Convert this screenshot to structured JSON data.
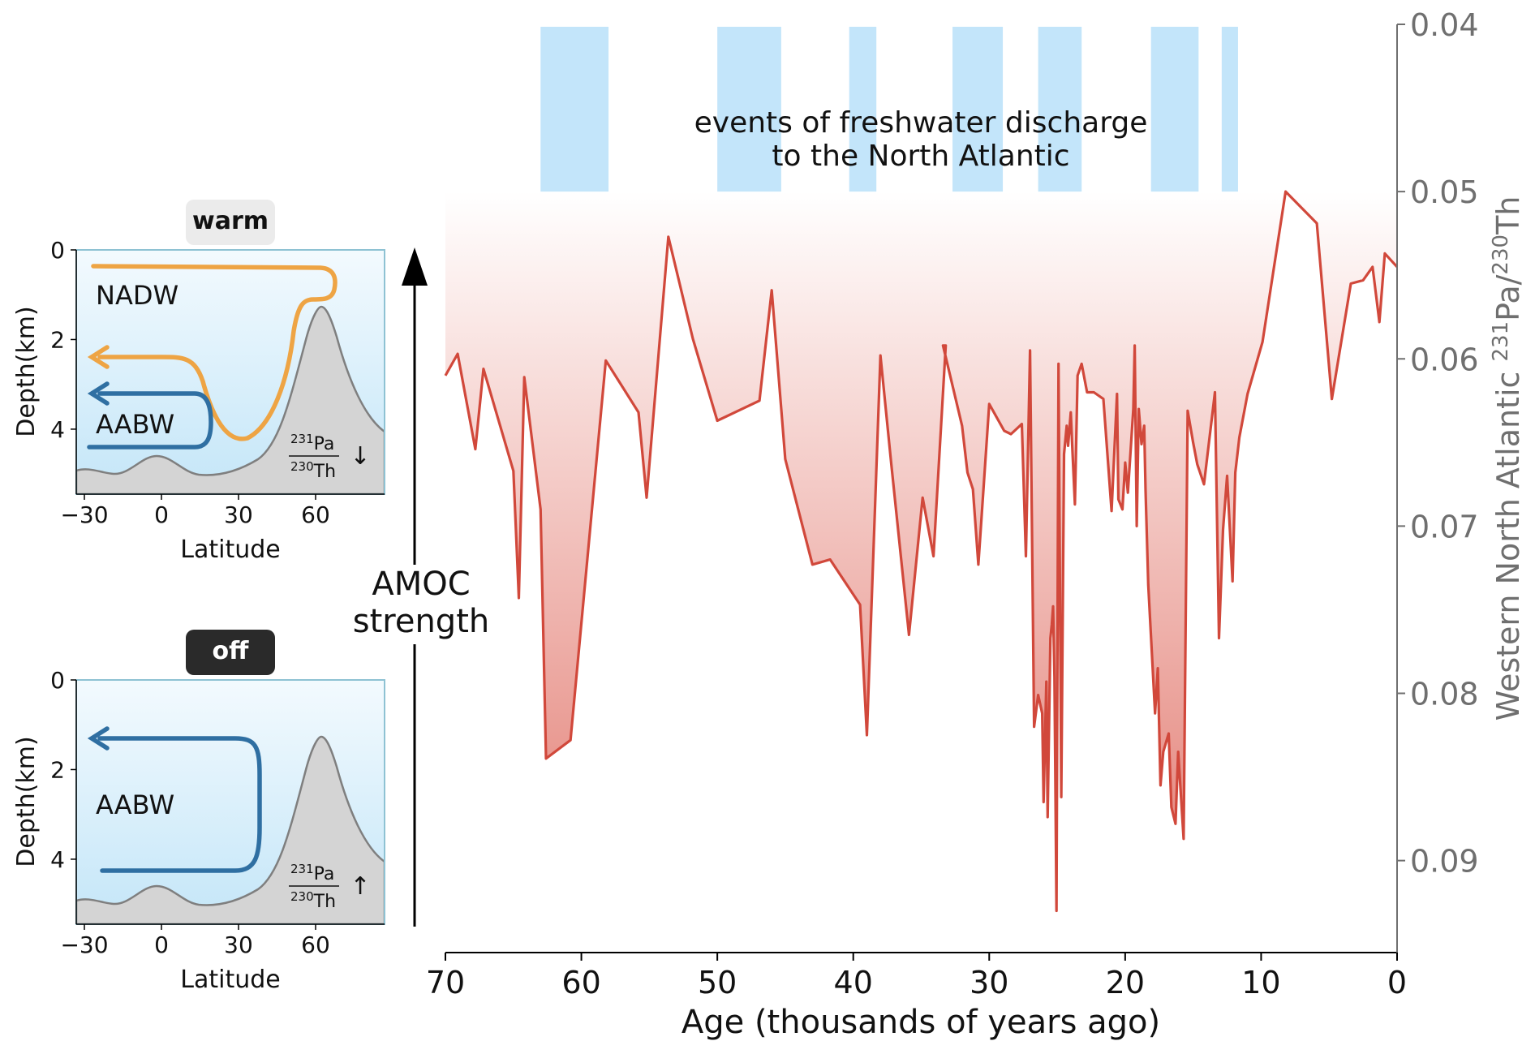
{
  "colors": {
    "series": "#d1483b",
    "fill_top": "#ffffff",
    "fill_bottom": "#e37d73",
    "event": "#c3e5fa",
    "right_axis": "#6f6f6f",
    "nadw": "#eea444",
    "aabw": "#2f6fa2",
    "ocean_top": "#f3fafe",
    "ocean_bottom": "#c4e6f8",
    "ridge": "#d4d4d4",
    "ridge_line": "#7f7f7f",
    "panel_border": "#8ec2d3"
  },
  "annotations": {
    "events_label_line1": "events of freshwater discharge",
    "events_label_line2": "to the North Atlantic",
    "amoc_line1": "AMOC",
    "amoc_line2": "strength"
  },
  "panels": {
    "warm": {
      "badge": "warm",
      "ylabel": "Depth(km)",
      "xlabel": "Latitude",
      "yticks": [
        "0",
        "2",
        "4"
      ],
      "xticks": [
        "−30",
        "0",
        "30",
        "60"
      ],
      "water_labels": [
        "NADW",
        "AABW"
      ],
      "ratio_num": "Pa",
      "ratio_num_sup": "231",
      "ratio_den": "Th",
      "ratio_den_sup": "230",
      "arrow": "↓"
    },
    "off": {
      "badge": "off",
      "ylabel": "Depth(km)",
      "xlabel": "Latitude",
      "yticks": [
        "0",
        "2",
        "4"
      ],
      "xticks": [
        "−30",
        "0",
        "30",
        "60"
      ],
      "water_labels": [
        "AABW"
      ],
      "ratio_num": "Pa",
      "ratio_num_sup": "231",
      "ratio_den": "Th",
      "ratio_den_sup": "230",
      "arrow": "↑"
    }
  },
  "chart_data": {
    "type": "line",
    "title": "",
    "xlabel": "Age (thousands of years ago)",
    "ylabel": "Western North Atlantic ²³¹Pa/²³⁰Th",
    "ylabel_parts": [
      "Western North Atlantic ",
      "231",
      "Pa/",
      "230",
      "Th"
    ],
    "xlim": [
      70,
      0
    ],
    "ylim": [
      0.04,
      0.0955
    ],
    "y_inverted": true,
    "x_ticks": [
      70,
      60,
      50,
      40,
      30,
      20,
      10,
      0
    ],
    "x_tick_labels": [
      "70",
      "60",
      "50",
      "40",
      "30",
      "20",
      "10",
      "0"
    ],
    "y_ticks": [
      0.04,
      0.05,
      0.06,
      0.07,
      0.08,
      0.09
    ],
    "y_tick_labels": [
      "0.04",
      "0.05",
      "0.06",
      "0.07",
      "0.08",
      "0.09"
    ],
    "fill_baseline": 0.05,
    "series": [
      {
        "name": "231Pa/230Th",
        "x": [
          70,
          69.1,
          67.8,
          67.2,
          65.0,
          64.6,
          64.2,
          63.0,
          62.6,
          60.8,
          58.2,
          55.8,
          55.2,
          53.6,
          51.8,
          50.0,
          46.9,
          46.0,
          45.0,
          43.0,
          41.7,
          39.5,
          39.0,
          38.0,
          37.2,
          35.9,
          34.9,
          34.1,
          33.2,
          33.4,
          32.0,
          31.6,
          31.2,
          30.8,
          30.0,
          28.9,
          28.4,
          27.6,
          27.3,
          27.0,
          26.7,
          26.4,
          26.1,
          26.0,
          25.8,
          25.7,
          25.5,
          25.4,
          25.3,
          25.2,
          25.05,
          24.9,
          24.7,
          24.5,
          24.3,
          24.2,
          24.0,
          23.9,
          23.7,
          23.5,
          23.2,
          22.8,
          22.3,
          21.6,
          21.0,
          20.6,
          20.5,
          20.2,
          20.0,
          19.8,
          19.4,
          19.3,
          19.15,
          19.0,
          18.8,
          18.6,
          18.5,
          18.3,
          17.8,
          17.6,
          17.4,
          17.2,
          16.8,
          16.6,
          16.3,
          16.1,
          15.7,
          15.4,
          15.0,
          14.7,
          14.2,
          13.4,
          13.1,
          12.8,
          12.5,
          12.1,
          11.9,
          11.6,
          11.0,
          9.9,
          8.2,
          5.9,
          4.8,
          3.4,
          2.5,
          1.8,
          1.3,
          0.9,
          0.0
        ],
        "y": [
          0.061,
          0.0597,
          0.0654,
          0.0606,
          0.0667,
          0.0743,
          0.0611,
          0.069,
          0.0839,
          0.0828,
          0.0601,
          0.0632,
          0.0683,
          0.0527,
          0.0588,
          0.0637,
          0.0625,
          0.0559,
          0.066,
          0.0723,
          0.072,
          0.0747,
          0.0825,
          0.0598,
          0.0663,
          0.0765,
          0.0683,
          0.0718,
          0.0592,
          0.0592,
          0.064,
          0.0668,
          0.0678,
          0.0723,
          0.0627,
          0.0643,
          0.0645,
          0.0639,
          0.0718,
          0.0595,
          0.082,
          0.0801,
          0.0812,
          0.0865,
          0.0793,
          0.0874,
          0.0767,
          0.0759,
          0.0748,
          0.079,
          0.093,
          0.0603,
          0.0862,
          0.0657,
          0.064,
          0.0652,
          0.0632,
          0.0651,
          0.0687,
          0.061,
          0.0603,
          0.062,
          0.062,
          0.0624,
          0.0691,
          0.0621,
          0.0684,
          0.069,
          0.0662,
          0.068,
          0.063,
          0.0592,
          0.07,
          0.063,
          0.0651,
          0.064,
          0.0679,
          0.0735,
          0.0812,
          0.0785,
          0.0855,
          0.0835,
          0.0824,
          0.0868,
          0.0878,
          0.0835,
          0.0887,
          0.0631,
          0.065,
          0.0663,
          0.0675,
          0.062,
          0.0767,
          0.0702,
          0.067,
          0.0733,
          0.0668,
          0.0647,
          0.0621,
          0.059,
          0.05,
          0.0519,
          0.0624,
          0.0555,
          0.0553,
          0.0545,
          0.0578,
          0.0537,
          0.0545
        ]
      }
    ],
    "events": [
      {
        "start": 63.0,
        "end": 58.0
      },
      {
        "start": 50.0,
        "end": 45.3
      },
      {
        "start": 40.3,
        "end": 38.3
      },
      {
        "start": 32.7,
        "end": 29.0
      },
      {
        "start": 26.4,
        "end": 23.2
      },
      {
        "start": 18.1,
        "end": 14.6
      },
      {
        "start": 12.9,
        "end": 11.7
      }
    ],
    "legend": []
  }
}
